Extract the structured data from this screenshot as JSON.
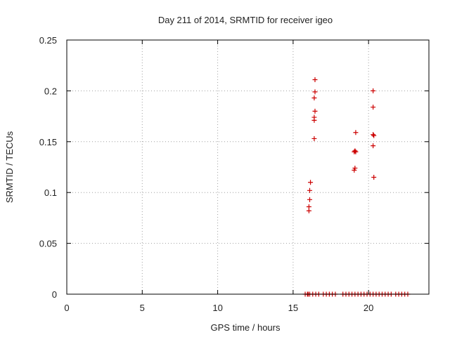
{
  "chart_data": {
    "type": "scatter",
    "title": "Day 211 of 2014, SRMTID for receiver igeo",
    "xlabel": "GPS time / hours",
    "ylabel": "SRMTID / TECUs",
    "xlim": [
      0,
      24
    ],
    "ylim": [
      0,
      0.25
    ],
    "xticks": [
      0,
      5,
      10,
      15,
      20
    ],
    "xtick_labels": [
      "0",
      "5",
      "10",
      "15",
      "20"
    ],
    "yticks": [
      0,
      0.05,
      0.1,
      0.15,
      0.2,
      0.25
    ],
    "ytick_labels": [
      "0",
      "0.05",
      "0.1",
      "0.15",
      "0.2",
      "0.25"
    ],
    "grid": true,
    "marker": "+",
    "color": "#cc0000",
    "series": [
      {
        "name": "SRMTID",
        "x": [
          16.15,
          16.1,
          16.1,
          16.05,
          16.05,
          16.0,
          16.45,
          16.45,
          16.4,
          16.45,
          16.4,
          16.4,
          16.4,
          19.15,
          19.1,
          19.05,
          19.15,
          19.1,
          19.05,
          20.3,
          20.3,
          20.3,
          20.35,
          20.3,
          20.35,
          15.8,
          15.95,
          16.1,
          16.3,
          16.5,
          16.7,
          17.0,
          17.2,
          17.4,
          17.6,
          17.8,
          18.3,
          18.5,
          18.7,
          18.9,
          19.1,
          19.3,
          19.5,
          19.7,
          19.9,
          20.1,
          20.3,
          20.5,
          20.7,
          20.9,
          21.1,
          21.3,
          21.5,
          21.8,
          22.0,
          22.2,
          22.4,
          22.6
        ],
        "y": [
          0.11,
          0.102,
          0.093,
          0.086,
          0.082,
          0.0,
          0.211,
          0.199,
          0.193,
          0.18,
          0.174,
          0.171,
          0.153,
          0.159,
          0.141,
          0.14,
          0.14,
          0.124,
          0.122,
          0.2,
          0.184,
          0.157,
          0.156,
          0.146,
          0.115,
          0,
          0,
          0,
          0,
          0,
          0,
          0,
          0,
          0,
          0,
          0,
          0,
          0,
          0,
          0,
          0,
          0,
          0,
          0,
          0,
          0,
          0,
          0,
          0,
          0,
          0,
          0,
          0,
          0,
          0,
          0,
          0,
          0
        ]
      }
    ]
  }
}
